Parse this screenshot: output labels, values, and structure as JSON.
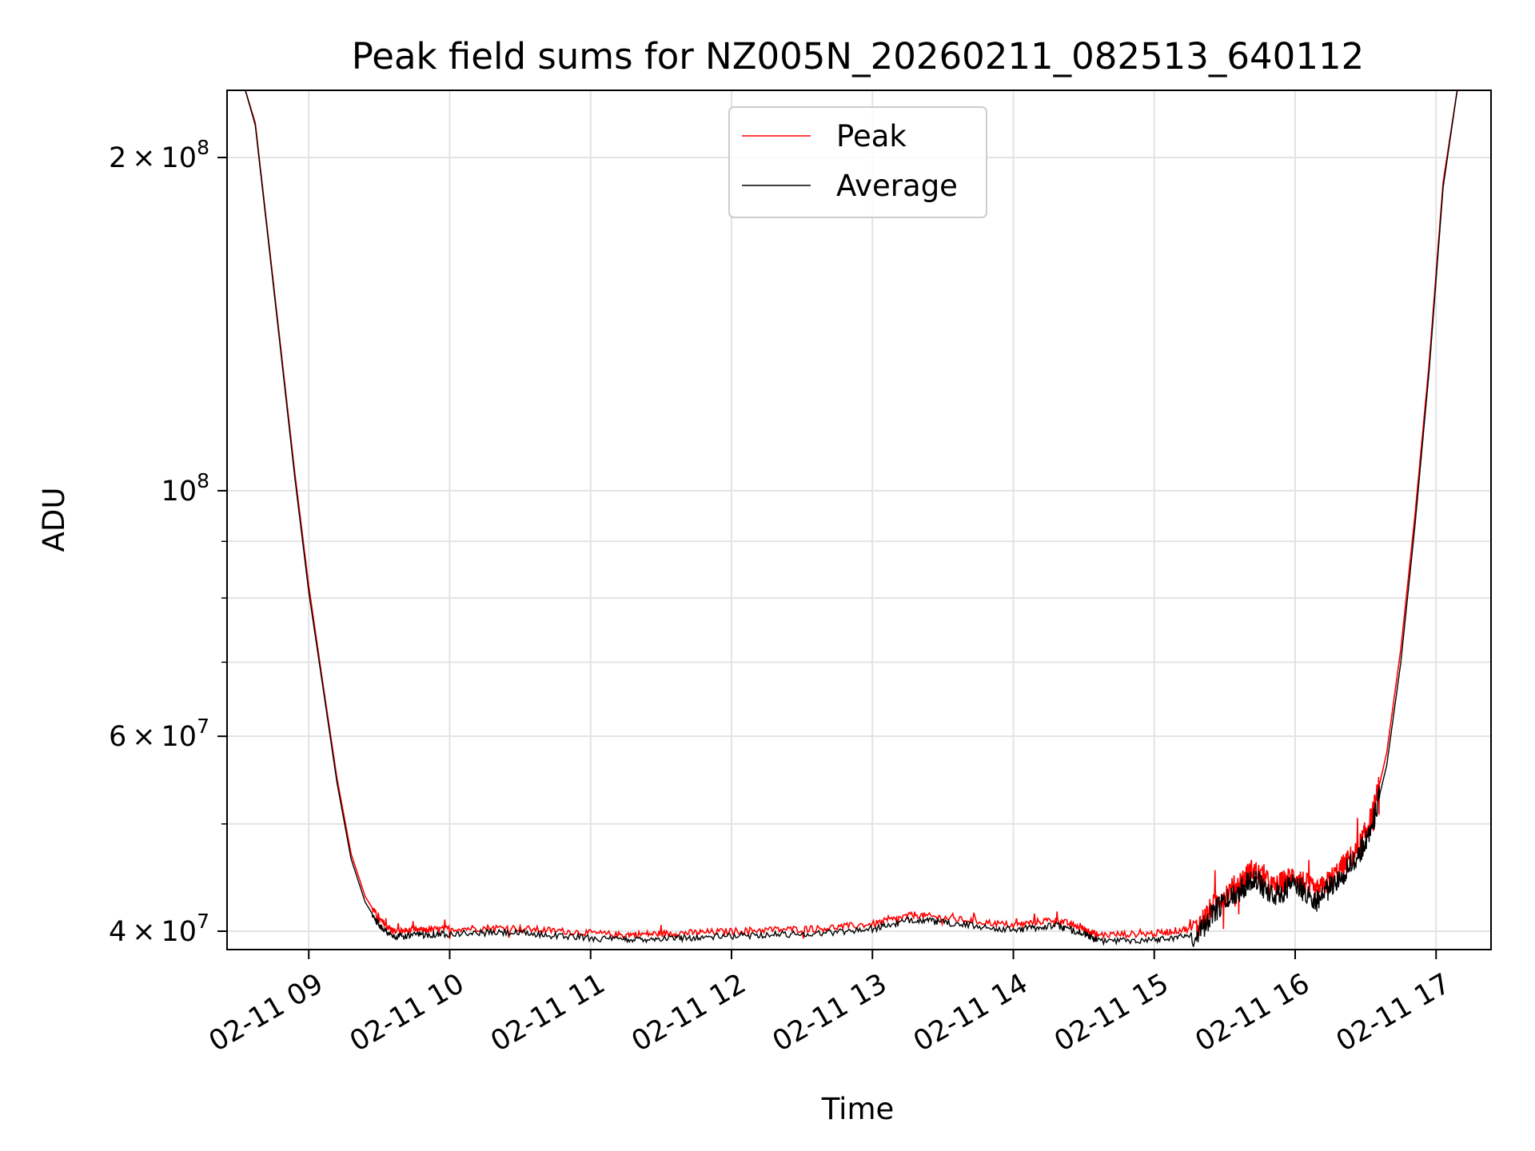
{
  "chart_data": {
    "type": "line",
    "title": "Peak field sums for NZ005N_20260211_082513_640112",
    "xlabel": "Time",
    "ylabel": "ADU",
    "yscale": "log",
    "xlim": [
      8.42,
      17.39
    ],
    "ylim": [
      38500000,
      230000000
    ],
    "grid": true,
    "legend_position": "top-center",
    "x_ticks": [
      {
        "value": 9,
        "label": "02-11 09"
      },
      {
        "value": 10,
        "label": "02-11 10"
      },
      {
        "value": 11,
        "label": "02-11 11"
      },
      {
        "value": 12,
        "label": "02-11 12"
      },
      {
        "value": 13,
        "label": "02-11 13"
      },
      {
        "value": 14,
        "label": "02-11 14"
      },
      {
        "value": 15,
        "label": "02-11 15"
      },
      {
        "value": 16,
        "label": "02-11 16"
      },
      {
        "value": 17,
        "label": "02-11 17"
      }
    ],
    "y_major_ticks": [
      {
        "value": 40000000,
        "mantissa": "4",
        "exponent": "7"
      },
      {
        "value": 60000000,
        "mantissa": "6",
        "exponent": "7"
      },
      {
        "value": 100000000,
        "mantissa": "",
        "exponent": "8"
      },
      {
        "value": 200000000,
        "mantissa": "2",
        "exponent": "8"
      }
    ],
    "y_minor_ticks": [
      50000000,
      70000000,
      80000000,
      90000000
    ],
    "series": [
      {
        "name": "Peak",
        "color": "#ff0000",
        "x": [
          8.42,
          8.55,
          8.62,
          8.7,
          8.8,
          8.9,
          9.0,
          9.1,
          9.2,
          9.3,
          9.4,
          9.5,
          9.6,
          9.8,
          10.0,
          10.4,
          10.8,
          11.2,
          11.5,
          11.8,
          12.2,
          12.6,
          13.0,
          13.3,
          13.6,
          14.0,
          14.3,
          14.5,
          14.6,
          15.0,
          15.3,
          15.45,
          15.6,
          15.7,
          15.85,
          16.0,
          16.15,
          16.3,
          16.45,
          16.55,
          16.65,
          16.75,
          16.85,
          16.95,
          17.05,
          17.15,
          17.39
        ],
        "values": [
          230000000,
          230000000,
          215000000,
          175000000,
          135000000,
          104000000,
          82000000,
          67000000,
          55000000,
          47000000,
          43000000,
          41000000,
          40000000,
          40100000,
          40200000,
          40300000,
          40000000,
          39700000,
          39800000,
          39900000,
          40100000,
          40200000,
          40600000,
          41400000,
          41000000,
          40500000,
          41000000,
          40200000,
          39700000,
          39800000,
          40300000,
          42700000,
          44200000,
          45500000,
          43800000,
          45000000,
          43300000,
          45200000,
          47500000,
          51000000,
          58000000,
          72000000,
          95000000,
          130000000,
          190000000,
          230000000,
          230000000
        ]
      },
      {
        "name": "Average",
        "color": "#000000",
        "x": [
          8.42,
          8.55,
          8.62,
          8.7,
          8.8,
          8.9,
          9.0,
          9.1,
          9.2,
          9.3,
          9.4,
          9.5,
          9.6,
          9.8,
          10.0,
          10.4,
          10.8,
          11.2,
          11.5,
          11.8,
          12.2,
          12.6,
          13.0,
          13.3,
          13.6,
          14.0,
          14.3,
          14.5,
          14.6,
          15.0,
          15.3,
          15.45,
          15.6,
          15.7,
          15.85,
          16.0,
          16.15,
          16.3,
          16.45,
          16.55,
          16.65,
          16.75,
          16.85,
          16.95,
          17.05,
          17.15,
          17.39
        ],
        "values": [
          230000000,
          230000000,
          214000000,
          174000000,
          134000000,
          103000000,
          81000000,
          66500000,
          54500000,
          46500000,
          42500000,
          40500000,
          39500000,
          39700000,
          39800000,
          39900000,
          39600000,
          39300000,
          39400000,
          39500000,
          39700000,
          39800000,
          40200000,
          41000000,
          40600000,
          40100000,
          40500000,
          39800000,
          39200000,
          39300000,
          39700000,
          42000000,
          43500000,
          44800000,
          43000000,
          44200000,
          42600000,
          44500000,
          46800000,
          50000000,
          56500000,
          70000000,
          93000000,
          128000000,
          188000000,
          230000000,
          230000000
        ]
      }
    ]
  }
}
